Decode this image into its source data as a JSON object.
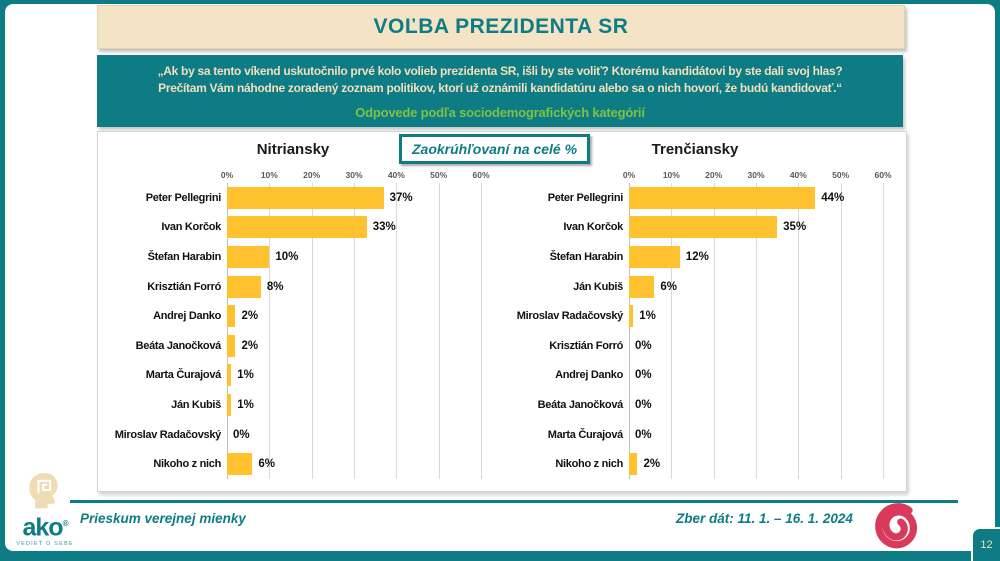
{
  "title_bar": {
    "title": "VOĽBA PREZIDENTA SR"
  },
  "question_box": {
    "line1": "„Ak by sa tento víkend uskutočnilo prvé kolo volieb prezidenta SR, išli by ste voliť? Ktorému kandidátovi by ste dali svoj hlas?",
    "line2": "Prečítam Vám náhodne zoradený zoznam politikov, ktorí už oznámili kandidatúru alebo sa o nich hovorí, že budú kandidovať.“",
    "subtitle": "Odpovede podľa sociodemografických kategórií"
  },
  "rounding_badge": {
    "label": "Zaokrúhľovaní na celé %"
  },
  "chart_data": [
    {
      "type": "bar",
      "orientation": "horizontal",
      "title": "Nitriansky",
      "categories": [
        "Peter Pellegrini",
        "Ivan Korčok",
        "Štefan Harabin",
        "Krisztián Forró",
        "Andrej Danko",
        "Beáta Janočková",
        "Marta Čurajová",
        "Ján Kubiš",
        "Miroslav Radačovský",
        "Nikoho z nich"
      ],
      "values": [
        37,
        33,
        10,
        8,
        2,
        2,
        1,
        1,
        0,
        6
      ],
      "value_labels": [
        "37%",
        "33%",
        "10%",
        "8%",
        "2%",
        "2%",
        "1%",
        "1%",
        "0%",
        "6%"
      ],
      "xlim": [
        0,
        60
      ],
      "tick_labels": [
        "0%",
        "10%",
        "20%",
        "30%",
        "40%",
        "50%",
        "60%"
      ],
      "grid": true,
      "legend": "none",
      "bar_color": "#FFC12E"
    },
    {
      "type": "bar",
      "orientation": "horizontal",
      "title": "Trenčiansky",
      "categories": [
        "Peter Pellegrini",
        "Ivan Korčok",
        "Štefan Harabin",
        "Ján Kubiš",
        "Miroslav Radačovský",
        "Krisztián Forró",
        "Andrej Danko",
        "Beáta Janočková",
        "Marta Čurajová",
        "Nikoho z nich"
      ],
      "values": [
        44,
        35,
        12,
        6,
        1,
        0,
        0,
        0,
        0,
        2
      ],
      "value_labels": [
        "44%",
        "35%",
        "12%",
        "6%",
        "1%",
        "0%",
        "0%",
        "0%",
        "0%",
        "2%"
      ],
      "xlim": [
        0,
        60
      ],
      "tick_labels": [
        "0%",
        "10%",
        "20%",
        "30%",
        "40%",
        "50%",
        "60%"
      ],
      "grid": true,
      "legend": "none",
      "bar_color": "#FFC12E"
    }
  ],
  "footer": {
    "survey_label": "Prieskum verejnej mienky",
    "date_range": "Zber dát: 11. 1. – 16. 1. 2024",
    "logo": {
      "text": "ako",
      "reg": "®",
      "tagline": "VEDIEŤ O SEBE"
    },
    "page_number": "12"
  },
  "colors": {
    "teal": "#0E7C85",
    "cream": "#F5E3C5",
    "green": "#7DC242",
    "bar_orange": "#FFC12E",
    "spiral_red": "#D93A5C",
    "head_cream": "#F0DCB4"
  }
}
